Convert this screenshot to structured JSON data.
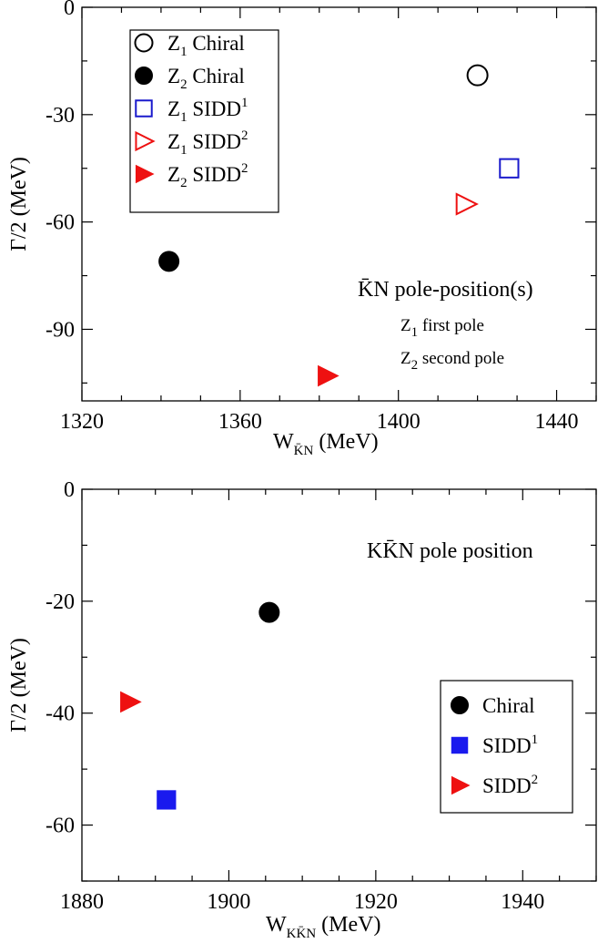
{
  "chart_data": [
    {
      "type": "scatter",
      "xlabel": "W",
      "xlabel_sub": "K̄N",
      "xlabel_unit": "(MeV)",
      "ylabel": "Γ/2  (MeV)",
      "xlim": [
        1320,
        1450
      ],
      "ylim": [
        -110,
        0
      ],
      "xticks": [
        1320,
        1360,
        1400,
        1440
      ],
      "yticks": [
        0,
        -30,
        -60,
        -90
      ],
      "series": [
        {
          "name": "Z1 Chiral",
          "legend_main": "Z",
          "legend_sub": "1",
          "legend_rest": " Chiral",
          "legend_sup": "",
          "marker": "circle-open",
          "color": "#000000",
          "points": [
            {
              "x": 1420,
              "y": -19
            }
          ]
        },
        {
          "name": "Z2 Chiral",
          "legend_main": "Z",
          "legend_sub": "2",
          "legend_rest": " Chiral",
          "legend_sup": "",
          "marker": "circle-filled",
          "color": "#000000",
          "points": [
            {
              "x": 1342,
              "y": -71
            }
          ]
        },
        {
          "name": "Z1 SIDD1",
          "legend_main": "Z",
          "legend_sub": "1",
          "legend_rest": " SIDD",
          "legend_sup": "1",
          "marker": "square-open",
          "color": "#1a1acc",
          "points": [
            {
              "x": 1428,
              "y": -45
            }
          ]
        },
        {
          "name": "Z1 SIDD2",
          "legend_main": "Z",
          "legend_sub": "1",
          "legend_rest": " SIDD",
          "legend_sup": "2",
          "marker": "triangle-right-open",
          "color": "#ee1111",
          "points": [
            {
              "x": 1417,
              "y": -55
            }
          ]
        },
        {
          "name": "Z2 SIDD2",
          "legend_main": "Z",
          "legend_sub": "2",
          "legend_rest": " SIDD",
          "legend_sup": "2",
          "marker": "triangle-right-filled",
          "color": "#ee1111",
          "points": [
            {
              "x": 1382,
              "y": -103
            }
          ]
        }
      ],
      "annotation": {
        "title": "K̄N pole-position(s)",
        "line1_main": "Z",
        "line1_sub": "1",
        "line1_rest": " first pole",
        "line2_main": "Z",
        "line2_sub": "2",
        "line2_rest": " second pole"
      },
      "legend_position": "top-left"
    },
    {
      "type": "scatter",
      "xlabel": "W",
      "xlabel_sub": "KK̄N",
      "xlabel_unit": "(MeV)",
      "ylabel": "Γ/2  (MeV)",
      "xlim": [
        1880,
        1950
      ],
      "ylim": [
        -70,
        0
      ],
      "xticks": [
        1880,
        1900,
        1920,
        1940
      ],
      "yticks": [
        0,
        -20,
        -40,
        -60
      ],
      "series": [
        {
          "name": "Chiral",
          "legend_main": "Chiral",
          "legend_sub": "",
          "legend_rest": "",
          "legend_sup": "",
          "marker": "circle-filled",
          "color": "#000000",
          "points": [
            {
              "x": 1905.5,
              "y": -22
            }
          ]
        },
        {
          "name": "SIDD1",
          "legend_main": "SIDD",
          "legend_sub": "",
          "legend_rest": "",
          "legend_sup": "1",
          "marker": "square-filled",
          "color": "#1a1aee",
          "points": [
            {
              "x": 1891.5,
              "y": -55.5
            }
          ]
        },
        {
          "name": "SIDD2",
          "legend_main": "SIDD",
          "legend_sub": "",
          "legend_rest": "",
          "legend_sup": "2",
          "marker": "triangle-right-filled",
          "color": "#ee1111",
          "points": [
            {
              "x": 1886.5,
              "y": -38
            }
          ]
        }
      ],
      "annotation": {
        "title": "KK̄N pole position"
      },
      "legend_position": "bottom-right"
    }
  ]
}
